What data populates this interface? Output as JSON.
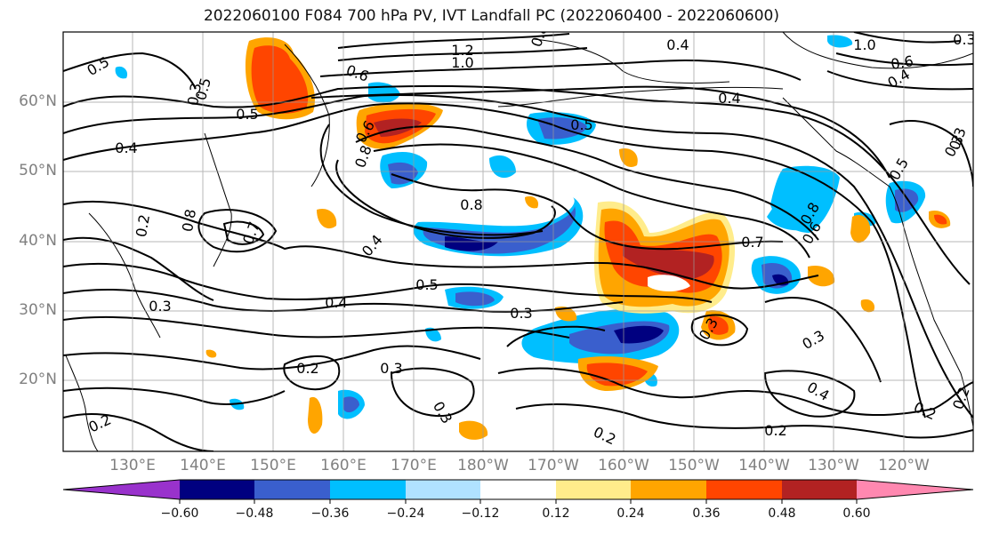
{
  "title": "2022060100 F084 700 hPa PV, IVT Landfall PC (2022060400 - 2022060600)",
  "lat_labels": [
    "60°N",
    "50°N",
    "40°N",
    "30°N",
    "20°N"
  ],
  "lon_labels": [
    "130°E",
    "140°E",
    "150°E",
    "160°E",
    "170°E",
    "180°W",
    "170°W",
    "160°W",
    "150°W",
    "140°W",
    "130°W",
    "120°W"
  ],
  "colorbar": {
    "ticks": [
      "−0.60",
      "−0.48",
      "−0.36",
      "−0.24",
      "−0.12",
      "0.12",
      "0.24",
      "0.36",
      "0.48",
      "0.60"
    ],
    "colors": [
      "#9932cc",
      "#000080",
      "#3a5fcd",
      "#00bfff",
      "#b0e2ff",
      "#ffffff",
      "#ffec8b",
      "#ffa500",
      "#ff4500",
      "#b22222",
      "#ff88b0"
    ]
  },
  "contour_labels": [
    "1.2",
    "1.0",
    "0.8",
    "0.6",
    "0.5",
    "0.4",
    "0.5",
    "0.5",
    "0.4",
    "0.3",
    "0.8",
    "0.6",
    "0.7",
    "0.8",
    "0.4",
    "0.5",
    "0.4",
    "0.3",
    "0.3",
    "0.2",
    "0.3",
    "0.3",
    "0.2",
    "0.2",
    "0.4",
    "0.2",
    "0.3",
    "0.3",
    "0.7",
    "0.6",
    "0.8",
    "0.5",
    "0.3",
    "0.2",
    "0.2",
    "0.5",
    "0.4",
    "0.8",
    "0.6",
    "0.3",
    "0.2",
    "1.0",
    "0.4",
    "0.3"
  ]
}
